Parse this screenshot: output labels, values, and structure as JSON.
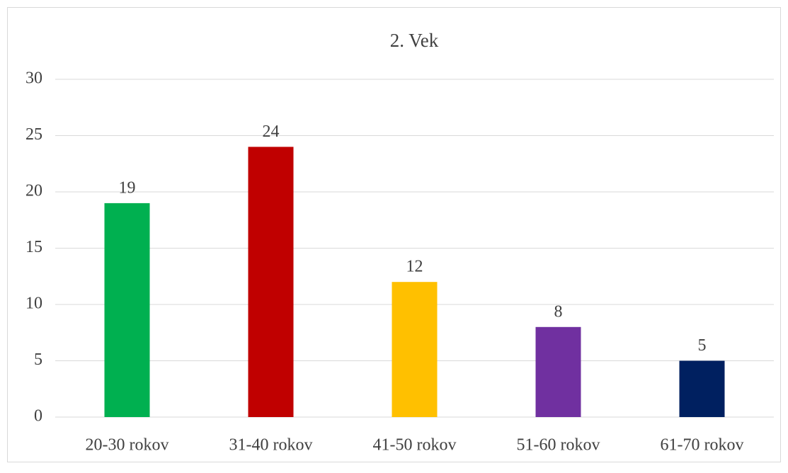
{
  "chart_data": {
    "type": "bar",
    "title": "2. Vek",
    "categories": [
      "20-30 rokov",
      "31-40 rokov",
      "41-50 rokov",
      "51-60 rokov",
      "61-70 rokov"
    ],
    "values": [
      19,
      24,
      12,
      8,
      5
    ],
    "colors": [
      "#00b050",
      "#c00000",
      "#ffc000",
      "#7030a0",
      "#002060"
    ],
    "ylim": [
      0,
      30
    ],
    "yticks": [
      0,
      5,
      10,
      15,
      20,
      25,
      30
    ],
    "grid": true
  }
}
